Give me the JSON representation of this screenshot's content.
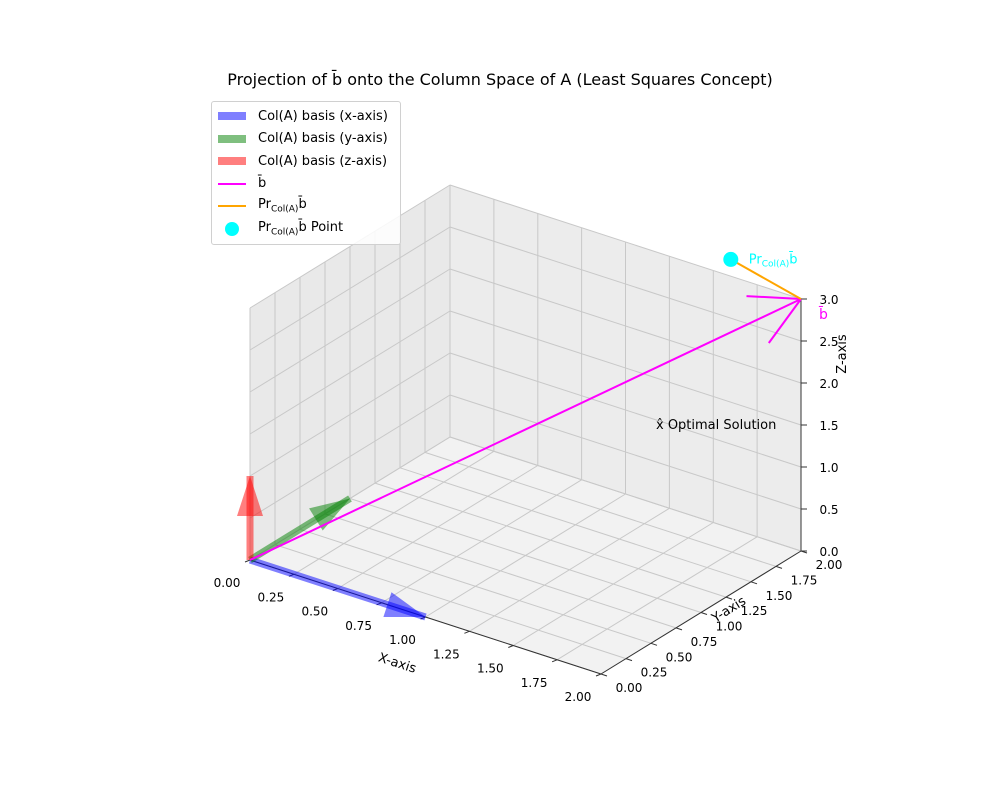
{
  "chart_data": {
    "type": "3d-line",
    "title": "Projection of b̄ onto the Column Space of A (Least Squares Concept)",
    "axes": {
      "x": {
        "label": "X-axis",
        "range": [
          0,
          2
        ],
        "ticks": [
          "0.00",
          "0.25",
          "0.50",
          "0.75",
          "1.00",
          "1.25",
          "1.50",
          "1.75",
          "2.00"
        ]
      },
      "y": {
        "label": "Y-axis",
        "range": [
          0,
          2
        ],
        "ticks": [
          "0.00",
          "0.25",
          "0.50",
          "0.75",
          "1.00",
          "1.25",
          "1.50",
          "1.75",
          "2.00"
        ]
      },
      "z": {
        "label": "Z-axis",
        "range": [
          0,
          3
        ],
        "ticks": [
          "0.0",
          "0.5",
          "1.0",
          "1.5",
          "2.0",
          "2.5",
          "3.0"
        ]
      }
    },
    "grid": true,
    "legend_position": "top-left",
    "series": [
      {
        "name": "Col(A) basis (x-axis)",
        "kind": "arrow",
        "color": "#0000ff",
        "from": [
          0,
          0,
          0
        ],
        "to": [
          1,
          0,
          0
        ]
      },
      {
        "name": "Col(A) basis (y-axis)",
        "kind": "arrow",
        "color": "#008000",
        "from": [
          0,
          0,
          0
        ],
        "to": [
          0,
          1,
          0
        ]
      },
      {
        "name": "Col(A) basis (z-axis)",
        "kind": "arrow",
        "color": "#ff0000",
        "from": [
          0,
          0,
          0
        ],
        "to": [
          0,
          0,
          1
        ]
      },
      {
        "name": "b̄",
        "kind": "arrow",
        "color": "#ff00ff",
        "from": [
          0,
          0,
          0
        ],
        "to": [
          2,
          2,
          3
        ]
      },
      {
        "name": "Pr_Col(A) b̄",
        "kind": "line",
        "color": "#ffa500",
        "from": [
          2,
          2,
          3
        ],
        "to": [
          1.6,
          2,
          3.2
        ]
      },
      {
        "name": "Pr_Col(A) b̄ Point",
        "kind": "point",
        "color": "#00ffff",
        "at": [
          1.6,
          2,
          3.2
        ]
      }
    ],
    "annotations": [
      {
        "text": "b̄",
        "color": "#ff00ff"
      },
      {
        "text": "Pr",
        "sub": "Col(A)",
        "tail": "b̄",
        "color": "#00ffff"
      },
      {
        "text": "x̂ Optimal Solution",
        "color": "#000000"
      }
    ]
  },
  "legend": {
    "items": [
      {
        "label": "Col(A) basis (x-axis)",
        "color": "#0000ff",
        "kind": "patch"
      },
      {
        "label": "Col(A) basis (y-axis)",
        "color": "#008000",
        "kind": "patch"
      },
      {
        "label": "Col(A) basis (z-axis)",
        "color": "#ff0000",
        "kind": "patch"
      },
      {
        "label": "b̄",
        "color": "#ff00ff",
        "kind": "line"
      },
      {
        "label_main": "Pr",
        "label_sub": "Col(A)",
        "label_tail": "b̄",
        "color": "#ffa500",
        "kind": "line"
      },
      {
        "label_main": "Pr",
        "label_sub": "Col(A)",
        "label_tail": "b̄ Point",
        "color": "#00ffff",
        "kind": "dot"
      }
    ]
  }
}
